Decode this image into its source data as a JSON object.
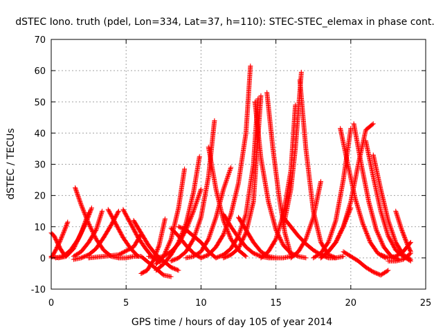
{
  "chart_data": {
    "type": "scatter",
    "title": "dSTEC Iono. truth (pdel, Lon=334, Lat=37, h=110): STEC-STEC_elemax in phase cont.",
    "xlabel": "GPS time / hours of day 105 of year 2014",
    "ylabel": "dSTEC  / TECUs",
    "xlim": [
      0,
      25
    ],
    "ylim": [
      -10,
      70
    ],
    "x_ticks": [
      0,
      5,
      10,
      15,
      20,
      25
    ],
    "y_ticks": [
      -10,
      0,
      10,
      20,
      30,
      40,
      50,
      60,
      70
    ],
    "x_tick_labels": [
      "0",
      "5",
      "10",
      "15",
      "20",
      "25"
    ],
    "y_tick_labels": [
      "-10",
      "0",
      "10",
      "20",
      "30",
      "40",
      "50",
      "60",
      "70"
    ],
    "grid": true,
    "legend": "none",
    "marker": "plus",
    "color": "#ff0000",
    "series": [
      {
        "x": [
          0.0,
          0.2,
          0.4,
          0.6,
          0.8,
          1.0
        ],
        "y": [
          8.0,
          7.0,
          5.0,
          3.0,
          1.5,
          0.5
        ]
      },
      {
        "x": [
          0.0,
          0.3,
          0.6,
          0.9,
          1.1
        ],
        "y": [
          0.0,
          2.5,
          5.5,
          9.0,
          11.5
        ]
      },
      {
        "x": [
          0.0,
          0.5,
          1.0,
          1.5,
          2.0,
          2.5
        ],
        "y": [
          0.5,
          0.0,
          0.5,
          3.0,
          8.0,
          14.5
        ]
      },
      {
        "x": [
          0.3,
          0.8,
          1.3,
          1.8,
          2.3,
          2.7
        ],
        "y": [
          0.0,
          0.5,
          2.5,
          6.0,
          11.0,
          16.0
        ]
      },
      {
        "x": [
          1.6,
          2.0,
          2.5,
          3.0,
          3.5,
          4.0,
          4.5
        ],
        "y": [
          22.5,
          17.0,
          11.0,
          6.0,
          2.5,
          0.5,
          0.0
        ]
      },
      {
        "x": [
          1.5,
          2.0,
          2.5,
          3.0,
          3.4
        ],
        "y": [
          0.5,
          2.0,
          5.0,
          9.0,
          15.0
        ]
      },
      {
        "x": [
          1.5,
          2.0,
          2.5,
          3.0,
          3.5,
          4.0,
          4.5
        ],
        "y": [
          -0.5,
          0.0,
          1.0,
          3.0,
          6.5,
          10.5,
          15.0
        ]
      },
      {
        "x": [
          3.8,
          4.3,
          4.8,
          5.3,
          5.8
        ],
        "y": [
          15.5,
          11.0,
          6.5,
          3.0,
          0.5
        ]
      },
      {
        "x": [
          4.8,
          5.3,
          5.8,
          6.3,
          6.8,
          7.3
        ],
        "y": [
          15.5,
          11.0,
          6.5,
          3.0,
          0.0,
          -1.5
        ]
      },
      {
        "x": [
          2.5,
          3.5,
          4.5,
          5.5,
          6.0
        ],
        "y": [
          0.0,
          0.5,
          1.0,
          3.5,
          7.5
        ]
      },
      {
        "x": [
          4.5,
          5.0,
          5.5,
          6.0,
          6.5,
          7.0,
          7.5,
          8.0
        ],
        "y": [
          0.0,
          0.0,
          0.5,
          0.5,
          -1.5,
          -3.5,
          -5.5,
          -6.0
        ]
      },
      {
        "x": [
          6.0,
          6.4,
          6.8,
          7.2,
          7.6
        ],
        "y": [
          -5.0,
          -4.0,
          -1.0,
          4.0,
          12.5
        ]
      },
      {
        "x": [
          5.5,
          6.0,
          6.5,
          7.0,
          7.5,
          8.0,
          8.5
        ],
        "y": [
          12.0,
          8.0,
          4.0,
          1.0,
          -1.0,
          -3.0,
          -4.0
        ]
      },
      {
        "x": [
          6.5,
          7.0,
          7.5,
          8.0,
          8.5,
          9.0,
          9.5,
          10.0
        ],
        "y": [
          0.5,
          0.0,
          0.5,
          2.0,
          4.5,
          9.0,
          15.0,
          22.0
        ]
      },
      {
        "x": [
          7.0,
          7.5,
          8.0,
          8.5,
          8.9
        ],
        "y": [
          -2.0,
          0.5,
          6.0,
          16.0,
          28.5
        ]
      },
      {
        "x": [
          7.0,
          7.5,
          8.0,
          8.5,
          9.0,
          9.5,
          9.9
        ],
        "y": [
          -4.0,
          -2.0,
          1.0,
          5.0,
          11.0,
          21.0,
          32.5
        ]
      },
      {
        "x": [
          8.0,
          8.5,
          9.0,
          9.5,
          10.0,
          10.5,
          10.9
        ],
        "y": [
          -1.0,
          0.0,
          2.0,
          6.0,
          13.0,
          26.0,
          44.0
        ]
      },
      {
        "x": [
          8.0,
          8.5,
          9.0,
          9.5,
          10.0
        ],
        "y": [
          9.5,
          7.0,
          4.0,
          1.5,
          0.0
        ]
      },
      {
        "x": [
          8.5,
          9.0,
          9.5,
          10.0,
          10.5,
          11.0
        ],
        "y": [
          10.0,
          9.0,
          7.0,
          5.0,
          2.0,
          0.0
        ]
      },
      {
        "x": [
          9.0,
          9.5,
          10.0,
          10.5,
          11.0,
          11.5,
          12.0
        ],
        "y": [
          0.0,
          0.5,
          2.0,
          6.0,
          13.0,
          22.0,
          29.0
        ]
      },
      {
        "x": [
          10.5,
          11.0,
          11.5,
          12.0,
          12.5,
          13.0
        ],
        "y": [
          35.5,
          22.0,
          12.0,
          6.0,
          2.5,
          0.5
        ]
      },
      {
        "x": [
          10.0,
          10.5,
          11.0,
          11.5,
          12.0,
          12.5,
          13.0,
          13.3
        ],
        "y": [
          0.0,
          1.0,
          3.5,
          7.5,
          14.0,
          24.0,
          40.0,
          61.5
        ]
      },
      {
        "x": [
          11.0,
          11.5,
          12.0,
          12.5,
          13.0,
          13.5,
          13.8
        ],
        "y": [
          0.0,
          1.0,
          3.0,
          7.0,
          14.0,
          30.0,
          51.0
        ]
      },
      {
        "x": [
          11.5,
          12.0,
          12.5,
          13.0,
          13.5,
          14.0
        ],
        "y": [
          0.0,
          1.0,
          3.0,
          8.0,
          18.0,
          52.0
        ]
      },
      {
        "x": [
          11.5,
          12.0,
          12.5,
          13.0,
          13.5,
          14.0,
          14.5,
          15.0
        ],
        "y": [
          14.0,
          10.0,
          6.5,
          3.5,
          1.5,
          0.5,
          0.0,
          0.0
        ]
      },
      {
        "x": [
          12.5,
          13.0,
          13.5,
          14.0,
          14.5,
          15.0,
          15.5,
          16.0
        ],
        "y": [
          13.0,
          9.0,
          5.0,
          2.0,
          0.5,
          0.0,
          0.0,
          0.5
        ]
      },
      {
        "x": [
          13.6,
          14.0,
          14.5,
          15.0,
          15.5,
          16.0,
          16.5,
          17.0
        ],
        "y": [
          50.0,
          32.0,
          18.0,
          9.0,
          4.0,
          1.5,
          0.5,
          0.0
        ]
      },
      {
        "x": [
          14.4,
          14.8,
          15.2,
          15.6,
          16.0
        ],
        "y": [
          53.0,
          35.0,
          20.0,
          8.0,
          1.0
        ]
      },
      {
        "x": [
          14.0,
          14.5,
          15.0,
          15.5,
          16.0,
          16.3
        ],
        "y": [
          0.0,
          2.0,
          6.0,
          14.0,
          28.0,
          49.0
        ]
      },
      {
        "x": [
          15.5,
          16.0,
          16.3,
          16.7
        ],
        "y": [
          10.0,
          22.0,
          35.0,
          59.5
        ]
      },
      {
        "x": [
          16.6,
          17.0,
          17.5,
          18.0,
          18.5,
          19.0
        ],
        "y": [
          57.0,
          35.0,
          15.0,
          5.0,
          1.0,
          0.0
        ]
      },
      {
        "x": [
          16.0,
          16.5,
          17.0,
          17.5,
          18.0
        ],
        "y": [
          0.0,
          2.0,
          6.0,
          13.0,
          24.5
        ]
      },
      {
        "x": [
          15.5,
          16.0,
          16.5,
          17.0,
          17.5,
          18.0,
          18.5,
          19.0,
          19.5
        ],
        "y": [
          13.0,
          10.0,
          7.0,
          4.5,
          2.5,
          1.0,
          0.0,
          0.0,
          0.5
        ]
      },
      {
        "x": [
          17.5,
          18.0,
          18.5,
          19.0,
          19.5,
          20.0
        ],
        "y": [
          0.0,
          1.5,
          5.0,
          12.0,
          25.0,
          41.5
        ]
      },
      {
        "x": [
          18.0,
          18.5,
          19.0,
          19.5,
          20.0,
          20.5,
          21.0,
          21.5
        ],
        "y": [
          0.0,
          2.0,
          5.0,
          10.0,
          18.0,
          30.0,
          41.0,
          43.0
        ]
      },
      {
        "x": [
          19.3,
          19.8,
          20.3,
          20.8,
          21.3,
          21.8,
          22.3
        ],
        "y": [
          41.5,
          30.0,
          19.0,
          11.0,
          5.0,
          1.5,
          0.0
        ]
      },
      {
        "x": [
          20.2,
          20.7,
          21.2,
          21.7,
          22.2,
          22.7,
          23.2
        ],
        "y": [
          43.0,
          30.0,
          18.0,
          9.0,
          3.5,
          0.5,
          -0.5
        ]
      },
      {
        "x": [
          21.0,
          21.5,
          22.0,
          22.5,
          23.0,
          23.5,
          24.0
        ],
        "y": [
          37.5,
          26.0,
          15.0,
          7.0,
          2.5,
          0.5,
          -1.0
        ]
      },
      {
        "x": [
          21.5,
          22.0,
          22.5,
          23.0,
          23.5,
          24.0
        ],
        "y": [
          33.0,
          22.0,
          12.0,
          5.0,
          1.0,
          -0.5
        ]
      },
      {
        "x": [
          19.5,
          20.0,
          20.5,
          21.0,
          21.5,
          22.0,
          22.5
        ],
        "y": [
          2.0,
          0.5,
          -1.0,
          -3.0,
          -4.5,
          -5.5,
          -4.0
        ]
      },
      {
        "x": [
          18.0,
          18.5,
          19.0,
          19.5,
          20.0
        ],
        "y": [
          0.0,
          2.0,
          5.0,
          10.0,
          16.0
        ]
      },
      {
        "x": [
          22.0,
          22.5,
          23.0,
          23.5,
          24.0
        ],
        "y": [
          1.0,
          0.0,
          0.5,
          2.0,
          5.0
        ]
      },
      {
        "x": [
          23.0,
          23.4,
          23.8,
          24.0
        ],
        "y": [
          15.0,
          9.0,
          4.0,
          2.0
        ]
      },
      {
        "x": [
          22.5,
          23.0,
          23.5,
          24.0
        ],
        "y": [
          -1.0,
          -1.0,
          -0.5,
          1.5
        ]
      }
    ]
  }
}
